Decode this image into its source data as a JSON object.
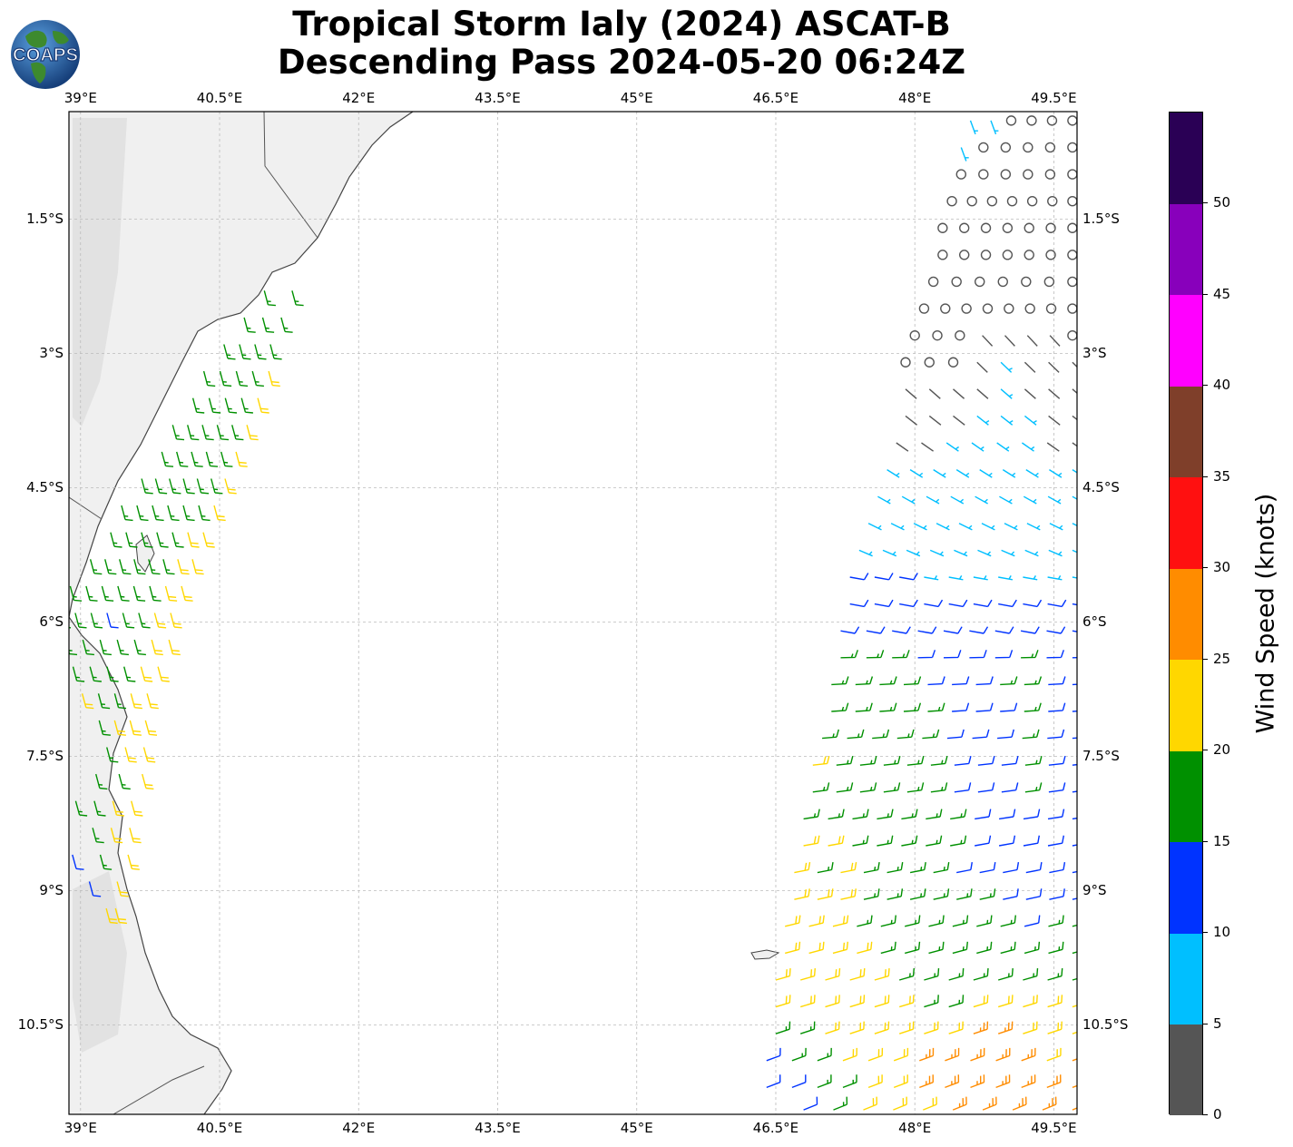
{
  "title": {
    "line1": "Tropical Storm Ialy (2024) ASCAT-B",
    "line2": "Descending Pass 2024-05-20 06:24Z"
  },
  "logo": {
    "text": "COAPS",
    "icon": "globe-icon",
    "ocean_color": "#1f5fa8",
    "land_color": "#3d8a2e"
  },
  "map": {
    "lon_range": [
      38.875,
      49.75
    ],
    "lat_range": [
      -11.5,
      -0.3
    ],
    "lon_ticks": [
      {
        "value": 39.0,
        "label": "39°E"
      },
      {
        "value": 40.5,
        "label": "40.5°E"
      },
      {
        "value": 42.0,
        "label": "42°E"
      },
      {
        "value": 43.5,
        "label": "43.5°E"
      },
      {
        "value": 45.0,
        "label": "45°E"
      },
      {
        "value": 46.5,
        "label": "46.5°E"
      },
      {
        "value": 48.0,
        "label": "48°E"
      },
      {
        "value": 49.5,
        "label": "49.5°E"
      }
    ],
    "lat_ticks": [
      {
        "value": -1.5,
        "label": "1.5°S"
      },
      {
        "value": -3.0,
        "label": "3°S"
      },
      {
        "value": -4.5,
        "label": "4.5°S"
      },
      {
        "value": -6.0,
        "label": "6°S"
      },
      {
        "value": -7.5,
        "label": "7.5°S"
      },
      {
        "value": -9.0,
        "label": "9°S"
      },
      {
        "value": -10.5,
        "label": "10.5°S"
      }
    ],
    "gridlines": true,
    "land_color": "#f2f2f2",
    "coast_color": "#444444"
  },
  "colorbar": {
    "label": "Wind Speed (knots)",
    "ticks": [
      "0",
      "5",
      "10",
      "15",
      "20",
      "25",
      "30",
      "35",
      "40",
      "45",
      "50"
    ],
    "segments": [
      {
        "from": 0,
        "to": 5,
        "color": "#555555"
      },
      {
        "from": 5,
        "to": 10,
        "color": "#00bfff"
      },
      {
        "from": 10,
        "to": 15,
        "color": "#0033ff"
      },
      {
        "from": 15,
        "to": 20,
        "color": "#009000"
      },
      {
        "from": 20,
        "to": 25,
        "color": "#ffd700"
      },
      {
        "from": 25,
        "to": 30,
        "color": "#ff8c00"
      },
      {
        "from": 30,
        "to": 35,
        "color": "#ff1010"
      },
      {
        "from": 35,
        "to": 40,
        "color": "#7f3f2a"
      },
      {
        "from": 40,
        "to": 45,
        "color": "#ff00ff"
      },
      {
        "from": 45,
        "to": 50,
        "color": "#8800bb"
      },
      {
        "from": 50,
        "to": 55,
        "color": "#2a0055"
      }
    ]
  },
  "swaths": [
    {
      "name": "west-swath",
      "rows": [
        {
          "lat": -2.3,
          "lon_start": 41.0,
          "lon_end": 41.3,
          "speeds": [
            17,
            17
          ]
        },
        {
          "lat": -2.6,
          "lon_start": 40.8,
          "lon_end": 41.2,
          "speeds": [
            17,
            17,
            17
          ]
        },
        {
          "lat": -2.9,
          "lon_start": 40.6,
          "lon_end": 41.1,
          "speeds": [
            17,
            17,
            17,
            18
          ]
        },
        {
          "lat": -3.2,
          "lon_start": 40.4,
          "lon_end": 41.1,
          "speeds": [
            17,
            17,
            17,
            17,
            22
          ]
        },
        {
          "lat": -3.5,
          "lon_start": 40.3,
          "lon_end": 41.0,
          "speeds": [
            17,
            17,
            17,
            17,
            22
          ]
        },
        {
          "lat": -3.8,
          "lon_start": 40.1,
          "lon_end": 40.9,
          "speeds": [
            17,
            17,
            17,
            17,
            17,
            22
          ]
        },
        {
          "lat": -4.1,
          "lon_start": 40.0,
          "lon_end": 40.8,
          "speeds": [
            17,
            17,
            17,
            17,
            17,
            22
          ]
        },
        {
          "lat": -4.4,
          "lon_start": 39.8,
          "lon_end": 40.7,
          "speeds": [
            17,
            17,
            17,
            17,
            17,
            17,
            22
          ]
        },
        {
          "lat": -4.7,
          "lon_start": 39.6,
          "lon_end": 40.6,
          "speeds": [
            17,
            17,
            17,
            17,
            17,
            17,
            22
          ]
        },
        {
          "lat": -5.0,
          "lon_start": 39.5,
          "lon_end": 40.5,
          "speeds": [
            17,
            17,
            17,
            17,
            17,
            22,
            22
          ]
        },
        {
          "lat": -5.3,
          "lon_start": 39.3,
          "lon_end": 40.4,
          "speeds": [
            17,
            17,
            17,
            17,
            17,
            17,
            22,
            22
          ]
        },
        {
          "lat": -5.6,
          "lon_start": 39.1,
          "lon_end": 40.3,
          "speeds": [
            17,
            17,
            17,
            17,
            17,
            17,
            22,
            22
          ]
        },
        {
          "lat": -5.9,
          "lon_start": 39.0,
          "lon_end": 40.2,
          "speeds": [
            17,
            17,
            17,
            12,
            17,
            17,
            22,
            22
          ]
        },
        {
          "lat": -6.2,
          "lon_start": 38.9,
          "lon_end": 40.2,
          "speeds": [
            17,
            17,
            17,
            17,
            17,
            17,
            22,
            22
          ]
        },
        {
          "lat": -6.5,
          "lon_start": 39.0,
          "lon_end": 40.1,
          "speeds": [
            12,
            17,
            17,
            17,
            17,
            22,
            22
          ]
        },
        {
          "lat": -6.8,
          "lon_start": 39.3,
          "lon_end": 40.0,
          "speeds": [
            22,
            17,
            17,
            22,
            22
          ]
        },
        {
          "lat": -7.1,
          "lon_start": 39.5,
          "lon_end": 40.0,
          "speeds": [
            17,
            22,
            22,
            22
          ]
        },
        {
          "lat": -7.4,
          "lon_start": 39.6,
          "lon_end": 40.0,
          "speeds": [
            17,
            22,
            22
          ]
        },
        {
          "lat": -7.7,
          "lon_start": 39.5,
          "lon_end": 40.0,
          "speeds": [
            17,
            17,
            22
          ]
        },
        {
          "lat": -8.0,
          "lon_start": 39.3,
          "lon_end": 39.9,
          "speeds": [
            17,
            17,
            22,
            22
          ]
        },
        {
          "lat": -8.3,
          "lon_start": 39.5,
          "lon_end": 39.9,
          "speeds": [
            17,
            22,
            22
          ]
        },
        {
          "lat": -8.6,
          "lon_start": 39.3,
          "lon_end": 39.9,
          "speeds": [
            12,
            17,
            22
          ]
        },
        {
          "lat": -8.9,
          "lon_start": 39.5,
          "lon_end": 39.8,
          "speeds": [
            12,
            22
          ]
        },
        {
          "lat": -9.2,
          "lon_start": 39.7,
          "lon_end": 39.8,
          "speeds": [
            22,
            22
          ]
        }
      ]
    },
    {
      "name": "east-swath",
      "rows": [
        {
          "lat": -0.4,
          "lon_start": 48.6,
          "lon_end": 49.7,
          "speeds": [
            8,
            8,
            1,
            1,
            1,
            1
          ]
        },
        {
          "lat": -0.7,
          "lon_start": 48.5,
          "lon_end": 49.7,
          "speeds": [
            8,
            1,
            1,
            1,
            1,
            1
          ]
        },
        {
          "lat": -1.0,
          "lon_start": 48.5,
          "lon_end": 49.7,
          "speeds": [
            1,
            1,
            1,
            1,
            1,
            1
          ]
        },
        {
          "lat": -1.3,
          "lon_start": 48.4,
          "lon_end": 49.7,
          "speeds": [
            1,
            1,
            1,
            1,
            1,
            1,
            1
          ]
        },
        {
          "lat": -1.6,
          "lon_start": 48.3,
          "lon_end": 49.7,
          "speeds": [
            1,
            1,
            1,
            1,
            1,
            1,
            1
          ]
        },
        {
          "lat": -1.9,
          "lon_start": 48.3,
          "lon_end": 49.7,
          "speeds": [
            1,
            1,
            1,
            1,
            1,
            1,
            1
          ]
        },
        {
          "lat": -2.2,
          "lon_start": 48.2,
          "lon_end": 49.7,
          "speeds": [
            1,
            1,
            1,
            1,
            1,
            1,
            1
          ]
        },
        {
          "lat": -2.5,
          "lon_start": 48.1,
          "lon_end": 49.7,
          "speeds": [
            1,
            1,
            1,
            1,
            1,
            1,
            1,
            1
          ]
        },
        {
          "lat": -2.8,
          "lon_start": 48.0,
          "lon_end": 49.7,
          "speeds": [
            1,
            1,
            1,
            3,
            3,
            3,
            3,
            1
          ]
        },
        {
          "lat": -3.1,
          "lon_start": 47.9,
          "lon_end": 49.7,
          "speeds": [
            1,
            1,
            1,
            3,
            8,
            3,
            3,
            3
          ]
        },
        {
          "lat": -3.4,
          "lon_start": 47.9,
          "lon_end": 49.7,
          "speeds": [
            3,
            3,
            3,
            3,
            8,
            3,
            3,
            3
          ]
        },
        {
          "lat": -3.7,
          "lon_start": 47.9,
          "lon_end": 49.7,
          "speeds": [
            3,
            3,
            3,
            8,
            8,
            8,
            3,
            3
          ]
        },
        {
          "lat": -4.0,
          "lon_start": 47.8,
          "lon_end": 49.7,
          "speeds": [
            3,
            3,
            8,
            8,
            8,
            8,
            3,
            3
          ]
        },
        {
          "lat": -4.3,
          "lon_start": 47.7,
          "lon_end": 49.7,
          "speeds": [
            8,
            8,
            8,
            8,
            8,
            8,
            8,
            8,
            8
          ]
        },
        {
          "lat": -4.6,
          "lon_start": 47.6,
          "lon_end": 49.7,
          "speeds": [
            8,
            8,
            8,
            8,
            8,
            8,
            8,
            8,
            8
          ]
        },
        {
          "lat": -4.9,
          "lon_start": 47.5,
          "lon_end": 49.7,
          "speeds": [
            8,
            8,
            8,
            8,
            8,
            8,
            8,
            8,
            8,
            8
          ]
        },
        {
          "lat": -5.2,
          "lon_start": 47.4,
          "lon_end": 49.7,
          "speeds": [
            8,
            8,
            8,
            8,
            8,
            8,
            8,
            8,
            8,
            8
          ]
        },
        {
          "lat": -5.5,
          "lon_start": 47.3,
          "lon_end": 49.7,
          "speeds": [
            12,
            12,
            12,
            8,
            8,
            8,
            8,
            8,
            8,
            8
          ]
        },
        {
          "lat": -5.8,
          "lon_start": 47.3,
          "lon_end": 49.7,
          "speeds": [
            12,
            12,
            12,
            12,
            12,
            12,
            12,
            12,
            12,
            12
          ]
        },
        {
          "lat": -6.1,
          "lon_start": 47.2,
          "lon_end": 49.7,
          "speeds": [
            12,
            12,
            12,
            12,
            12,
            12,
            12,
            12,
            12,
            12
          ]
        },
        {
          "lat": -6.4,
          "lon_start": 47.2,
          "lon_end": 49.7,
          "speeds": [
            17,
            17,
            17,
            12,
            12,
            12,
            12,
            17,
            12,
            12
          ]
        },
        {
          "lat": -6.7,
          "lon_start": 47.1,
          "lon_end": 49.7,
          "speeds": [
            17,
            17,
            17,
            17,
            12,
            12,
            12,
            17,
            17,
            12,
            12
          ]
        },
        {
          "lat": -7.0,
          "lon_start": 47.1,
          "lon_end": 49.7,
          "speeds": [
            17,
            17,
            17,
            17,
            17,
            12,
            12,
            12,
            17,
            12,
            12
          ]
        },
        {
          "lat": -7.3,
          "lon_start": 47.0,
          "lon_end": 49.7,
          "speeds": [
            17,
            17,
            17,
            17,
            17,
            12,
            12,
            12,
            17,
            12,
            12
          ]
        },
        {
          "lat": -7.6,
          "lon_start": 46.9,
          "lon_end": 49.7,
          "speeds": [
            22,
            17,
            17,
            17,
            17,
            17,
            12,
            12,
            12,
            17,
            12,
            12
          ]
        },
        {
          "lat": -7.9,
          "lon_start": 46.9,
          "lon_end": 49.7,
          "speeds": [
            17,
            17,
            17,
            17,
            17,
            17,
            12,
            12,
            12,
            17,
            12,
            12
          ]
        },
        {
          "lat": -8.2,
          "lon_start": 46.8,
          "lon_end": 49.7,
          "speeds": [
            17,
            17,
            17,
            17,
            17,
            17,
            17,
            12,
            12,
            12,
            12,
            12
          ]
        },
        {
          "lat": -8.5,
          "lon_start": 46.8,
          "lon_end": 49.7,
          "speeds": [
            22,
            22,
            17,
            17,
            17,
            17,
            17,
            12,
            12,
            12,
            12,
            12
          ]
        },
        {
          "lat": -8.8,
          "lon_start": 46.7,
          "lon_end": 49.7,
          "speeds": [
            22,
            17,
            22,
            17,
            17,
            17,
            17,
            12,
            12,
            12,
            12,
            12,
            12
          ]
        },
        {
          "lat": -9.1,
          "lon_start": 46.7,
          "lon_end": 49.7,
          "speeds": [
            22,
            22,
            22,
            17,
            17,
            17,
            17,
            17,
            17,
            12,
            12,
            12,
            12
          ]
        },
        {
          "lat": -9.4,
          "lon_start": 46.6,
          "lon_end": 49.7,
          "speeds": [
            22,
            22,
            22,
            17,
            17,
            17,
            17,
            17,
            17,
            17,
            12,
            17,
            17
          ]
        },
        {
          "lat": -9.7,
          "lon_start": 46.6,
          "lon_end": 49.7,
          "speeds": [
            22,
            22,
            22,
            22,
            17,
            17,
            17,
            17,
            17,
            17,
            17,
            17,
            17
          ]
        },
        {
          "lat": -10.0,
          "lon_start": 46.5,
          "lon_end": 49.7,
          "speeds": [
            22,
            22,
            22,
            22,
            22,
            17,
            17,
            17,
            17,
            17,
            17,
            17,
            17
          ]
        },
        {
          "lat": -10.3,
          "lon_start": 46.5,
          "lon_end": 49.7,
          "speeds": [
            22,
            22,
            22,
            22,
            22,
            22,
            17,
            17,
            22,
            22,
            22,
            22,
            22
          ]
        },
        {
          "lat": -10.6,
          "lon_start": 46.5,
          "lon_end": 49.7,
          "speeds": [
            17,
            17,
            22,
            22,
            22,
            22,
            22,
            22,
            27,
            27,
            22,
            22,
            22
          ]
        },
        {
          "lat": -10.9,
          "lon_start": 46.4,
          "lon_end": 49.7,
          "speeds": [
            12,
            17,
            17,
            22,
            22,
            22,
            27,
            27,
            27,
            27,
            27,
            22,
            27
          ]
        },
        {
          "lat": -11.2,
          "lon_start": 46.4,
          "lon_end": 49.7,
          "speeds": [
            12,
            12,
            17,
            17,
            22,
            22,
            27,
            27,
            27,
            27,
            27,
            27,
            27
          ]
        },
        {
          "lat": -11.45,
          "lon_start": 46.8,
          "lon_end": 49.7,
          "speeds": [
            12,
            17,
            22,
            22,
            22,
            27,
            27,
            27,
            27,
            27
          ]
        }
      ]
    }
  ]
}
